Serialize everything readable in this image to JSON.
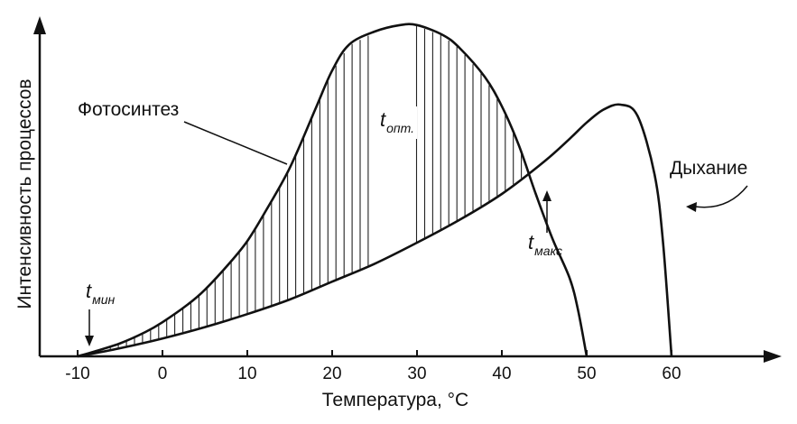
{
  "chart_data": {
    "type": "line",
    "xlabel": "Температура, °C",
    "ylabel": "Интенсивность процессов",
    "xlim": [
      -14,
      72
    ],
    "ylim": [
      0,
      1.1
    ],
    "x_ticks": [
      -10,
      0,
      10,
      20,
      30,
      40,
      50,
      60
    ],
    "x_tick_labels": [
      "-10",
      "0",
      "10",
      "20",
      "30",
      "40",
      "50",
      "60"
    ],
    "grid": false,
    "series": [
      {
        "name": "Фотосинтез",
        "x": [
          -10,
          -8,
          -5,
          -2,
          0,
          3,
          5,
          8,
          10,
          12,
          15,
          18,
          20,
          22,
          25,
          28,
          30,
          33,
          35,
          38,
          40,
          42,
          44,
          46,
          48,
          49,
          50
        ],
        "y": [
          0,
          0.015,
          0.04,
          0.075,
          0.105,
          0.16,
          0.205,
          0.29,
          0.355,
          0.44,
          0.58,
          0.76,
          0.88,
          0.96,
          1.0,
          1.02,
          1.02,
          0.99,
          0.95,
          0.86,
          0.77,
          0.65,
          0.5,
          0.36,
          0.24,
          0.14,
          0
        ]
      },
      {
        "name": "Дыхание",
        "x": [
          -10,
          -5,
          0,
          5,
          10,
          15,
          20,
          25,
          30,
          35,
          40,
          45,
          48,
          50,
          52,
          54,
          56,
          58,
          59,
          60
        ],
        "y": [
          0,
          0.025,
          0.055,
          0.09,
          0.13,
          0.175,
          0.23,
          0.285,
          0.35,
          0.42,
          0.5,
          0.6,
          0.67,
          0.72,
          0.76,
          0.775,
          0.74,
          0.56,
          0.35,
          0
        ]
      }
    ],
    "annotations": [
      {
        "base": "t",
        "sub": "мин",
        "x": -9
      },
      {
        "base": "t",
        "sub": "опт.",
        "x": 27
      },
      {
        "base": "t",
        "sub": "макс",
        "x": 46
      }
    ]
  }
}
